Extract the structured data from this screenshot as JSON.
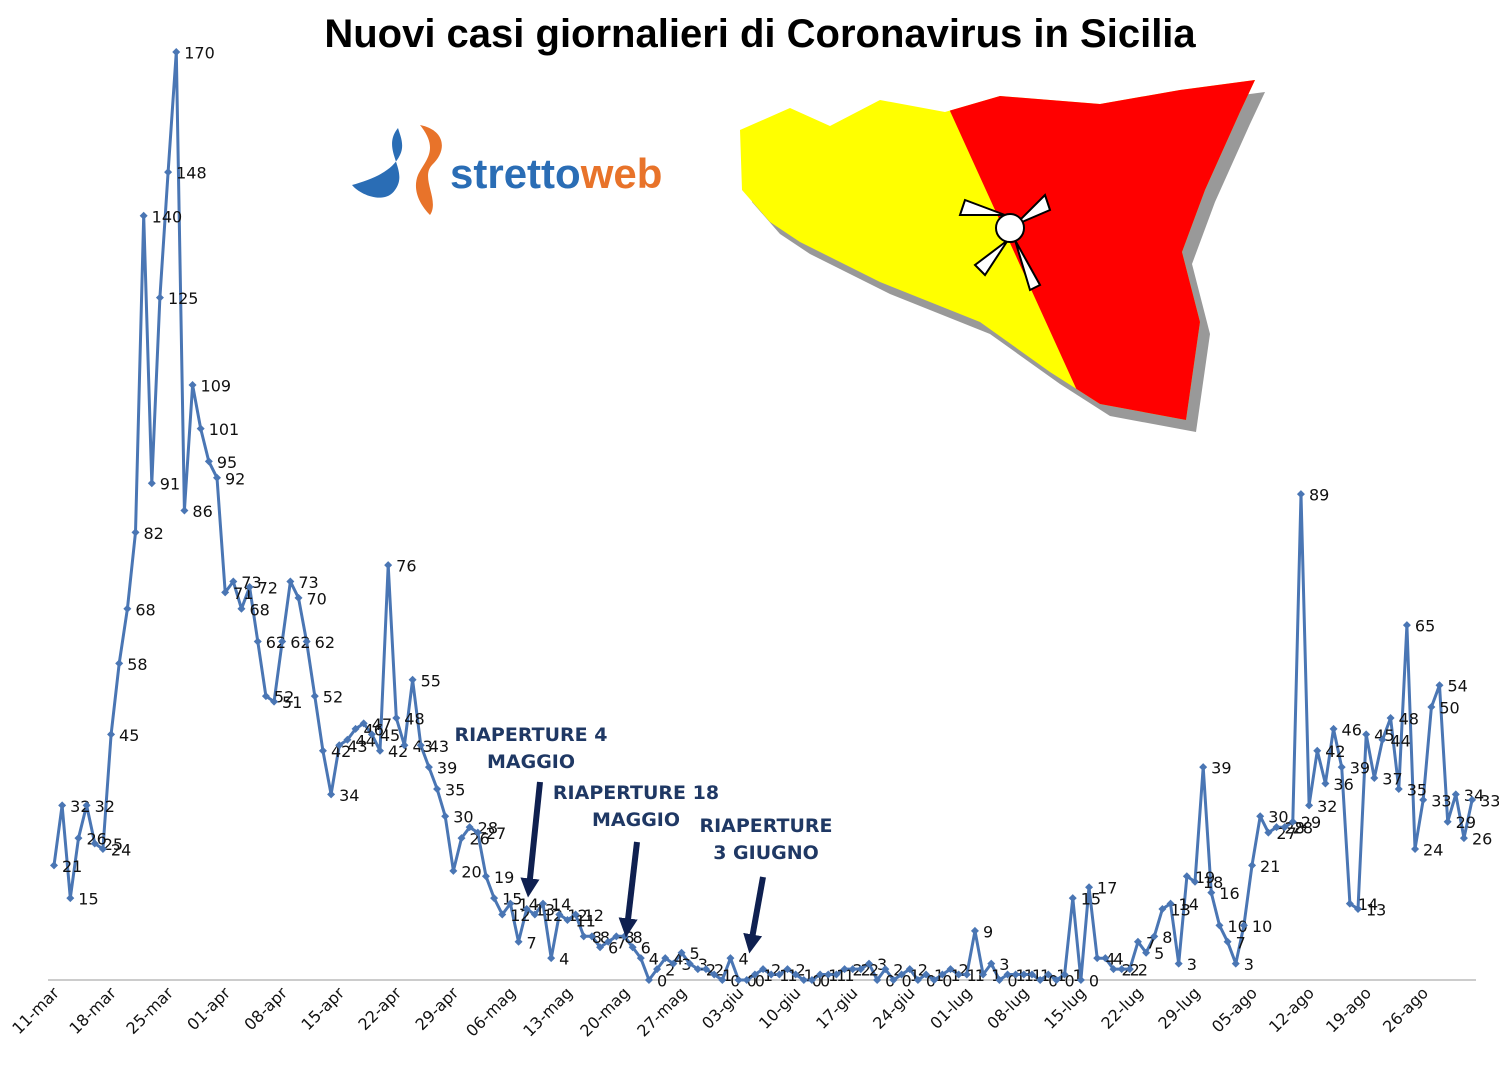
{
  "chart_data": {
    "type": "line",
    "title": "Nuovi casi giornalieri di Coronavirus in Sicilia",
    "logo": {
      "part1": "stretto",
      "part2": "web"
    },
    "categories": [
      "11-mar",
      null,
      null,
      null,
      null,
      null,
      null,
      "18-mar",
      null,
      null,
      null,
      null,
      null,
      null,
      "25-mar",
      null,
      null,
      null,
      null,
      null,
      null,
      "01-apr",
      null,
      null,
      null,
      null,
      null,
      null,
      "08-apr",
      null,
      null,
      null,
      null,
      null,
      null,
      "15-apr",
      null,
      null,
      null,
      null,
      null,
      null,
      "22-apr",
      null,
      null,
      null,
      null,
      null,
      null,
      "29-apr",
      null,
      null,
      null,
      null,
      null,
      null,
      "06-mag",
      null,
      null,
      null,
      null,
      null,
      null,
      "13-mag",
      null,
      null,
      null,
      null,
      null,
      null,
      "20-mag",
      null,
      null,
      null,
      null,
      null,
      null,
      "27-mag",
      null,
      null,
      null,
      null,
      null,
      null,
      "03-giu",
      null,
      null,
      null,
      null,
      null,
      null,
      "10-giu",
      null,
      null,
      null,
      null,
      null,
      null,
      "17-giu",
      null,
      null,
      null,
      null,
      null,
      null,
      "24-giu",
      null,
      null,
      null,
      null,
      null,
      null,
      "01-lug",
      null,
      null,
      null,
      null,
      null,
      null,
      "08-lug",
      null,
      null,
      null,
      null,
      null,
      null,
      "15-lug",
      null,
      null,
      null,
      null,
      null,
      null,
      "22-lug",
      null,
      null,
      null,
      null,
      null,
      null,
      "29-lug",
      null,
      null,
      null,
      null,
      null,
      null,
      "05-ago",
      null,
      null,
      null,
      null,
      null,
      null,
      "12-ago",
      null,
      null,
      null,
      null,
      null,
      null,
      "19-ago",
      null,
      null,
      null,
      null,
      null,
      null,
      "26-ago",
      null,
      null,
      null,
      null,
      null,
      null
    ],
    "series": [
      {
        "name": "Nuovi casi",
        "color": "#4a76b4",
        "values": [
          21,
          32,
          15,
          26,
          32,
          25,
          24,
          45,
          58,
          68,
          82,
          140,
          91,
          125,
          148,
          170,
          86,
          109,
          101,
          95,
          92,
          71,
          73,
          68,
          72,
          62,
          52,
          51,
          62,
          73,
          70,
          62,
          52,
          42,
          34,
          43,
          44,
          46,
          47,
          45,
          42,
          76,
          48,
          43,
          55,
          43,
          39,
          35,
          30,
          20,
          26,
          28,
          27,
          19,
          15,
          12,
          14,
          7,
          13,
          12,
          14,
          4,
          12,
          11,
          12,
          8,
          8,
          6,
          7,
          8,
          8,
          6,
          4,
          0,
          2,
          4,
          3,
          5,
          3,
          2,
          2,
          1,
          0,
          4,
          0,
          0,
          1,
          2,
          1,
          1,
          2,
          1,
          0,
          0,
          1,
          1,
          1,
          2,
          2,
          2,
          3,
          0,
          2,
          0,
          1,
          2,
          0,
          1,
          0,
          1,
          2,
          1,
          1,
          9,
          1,
          3,
          0,
          1,
          1,
          1,
          1,
          0,
          1,
          0,
          1,
          15,
          0,
          17,
          4,
          4,
          2,
          2,
          2,
          7,
          5,
          8,
          13,
          14,
          3,
          19,
          18,
          39,
          16,
          10,
          7,
          3,
          10,
          21,
          30,
          27,
          28,
          28,
          29,
          89,
          32,
          42,
          36,
          46,
          39,
          14,
          13,
          45,
          37,
          44,
          48,
          35,
          65,
          24,
          33,
          50,
          54,
          29,
          34,
          26,
          33
        ]
      }
    ],
    "ylim": [
      0,
      170
    ],
    "annotations": [
      {
        "lines": [
          "RIAPERTURE 4",
          "MAGGIO"
        ]
      },
      {
        "lines": [
          "RIAPERTURE 18",
          "MAGGIO"
        ]
      },
      {
        "lines": [
          "RIAPERTURE",
          "3 GIUGNO"
        ]
      }
    ]
  }
}
